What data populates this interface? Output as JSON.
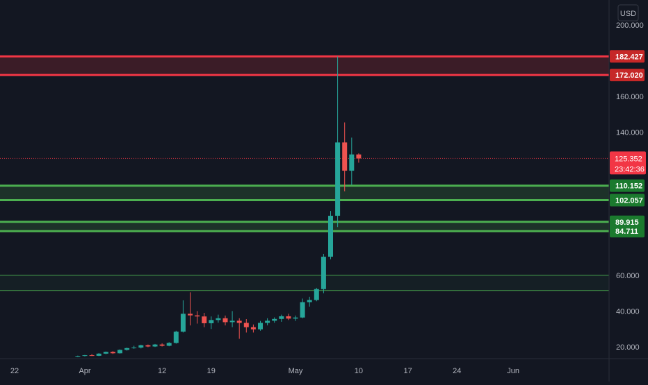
{
  "currency": "USD",
  "price_axis": {
    "ticks": [
      {
        "value": 200,
        "label": "200.000"
      },
      {
        "value": 160,
        "label": "160.000"
      },
      {
        "value": 140,
        "label": "140.000"
      },
      {
        "value": 60,
        "label": "60.000"
      },
      {
        "value": 40,
        "label": "40.000"
      },
      {
        "value": 20,
        "label": "20.000"
      }
    ]
  },
  "time_axis": {
    "ticks": [
      {
        "label": "22",
        "day": -10
      },
      {
        "label": "Apr",
        "day": 0
      },
      {
        "label": "12",
        "day": 11
      },
      {
        "label": "19",
        "day": 18
      },
      {
        "label": "May",
        "day": 30
      },
      {
        "label": "10",
        "day": 39
      },
      {
        "label": "17",
        "day": 46
      },
      {
        "label": "24",
        "day": 53
      },
      {
        "label": "Jun",
        "day": 61
      }
    ]
  },
  "zones": [
    {
      "name": "resistance-zone",
      "top": 182.427,
      "bottom": 172.02,
      "top_label": "182.427",
      "bottom_label": "172.020",
      "color": "#f23645",
      "kind": "resistance"
    },
    {
      "name": "support-zone-1",
      "top": 110.152,
      "bottom": 102.057,
      "top_label": "110.152",
      "bottom_label": "102.057",
      "color": "#4caf50",
      "kind": "support"
    },
    {
      "name": "support-zone-2",
      "top": 89.915,
      "bottom": 84.711,
      "top_label": "89.915",
      "bottom_label": "84.711",
      "color": "#4caf50",
      "kind": "support"
    },
    {
      "name": "support-zone-3",
      "top": 60.0,
      "bottom": 51.5,
      "top_label": "",
      "bottom_label": "",
      "color": "#4caf50",
      "kind": "support-faint"
    }
  ],
  "last_price": {
    "value": 125.352,
    "label": "125.352",
    "countdown": "23:42:36",
    "color": "#f23645"
  },
  "colors": {
    "up": "#26a69a",
    "down": "#ef5350",
    "background": "#131722",
    "text": "#b2b5be",
    "grid": "#1e222d"
  },
  "chart_data": {
    "type": "candlestick",
    "x": [
      "2021-04-01",
      "2021-05-12"
    ],
    "ylim": [
      14,
      208
    ],
    "grid": false,
    "candles": [
      {
        "day": -1,
        "o": 14.6,
        "h": 15.1,
        "l": 14.3,
        "c": 14.9
      },
      {
        "day": 0,
        "o": 14.9,
        "h": 15.5,
        "l": 14.6,
        "c": 15.3
      },
      {
        "day": 1,
        "o": 15.3,
        "h": 16.0,
        "l": 14.9,
        "c": 15.0
      },
      {
        "day": 2,
        "o": 15.0,
        "h": 16.5,
        "l": 14.8,
        "c": 16.2
      },
      {
        "day": 3,
        "o": 16.2,
        "h": 17.4,
        "l": 15.9,
        "c": 17.2
      },
      {
        "day": 4,
        "o": 17.2,
        "h": 17.6,
        "l": 16.0,
        "c": 16.4
      },
      {
        "day": 5,
        "o": 16.4,
        "h": 18.6,
        "l": 16.2,
        "c": 18.3
      },
      {
        "day": 6,
        "o": 18.3,
        "h": 19.6,
        "l": 17.9,
        "c": 19.3
      },
      {
        "day": 7,
        "o": 19.3,
        "h": 20.6,
        "l": 18.9,
        "c": 19.6
      },
      {
        "day": 8,
        "o": 19.6,
        "h": 21.2,
        "l": 19.1,
        "c": 20.9
      },
      {
        "day": 9,
        "o": 20.9,
        "h": 21.3,
        "l": 19.8,
        "c": 20.2
      },
      {
        "day": 10,
        "o": 20.2,
        "h": 21.6,
        "l": 19.9,
        "c": 21.3
      },
      {
        "day": 11,
        "o": 21.3,
        "h": 22.0,
        "l": 20.2,
        "c": 20.6
      },
      {
        "day": 12,
        "o": 20.6,
        "h": 22.6,
        "l": 20.3,
        "c": 22.2
      },
      {
        "day": 13,
        "o": 22.2,
        "h": 29.0,
        "l": 21.8,
        "c": 28.5
      },
      {
        "day": 14,
        "o": 28.5,
        "h": 46.0,
        "l": 28.0,
        "c": 38.5
      },
      {
        "day": 15,
        "o": 38.5,
        "h": 50.5,
        "l": 32.0,
        "c": 37.6
      },
      {
        "day": 16,
        "o": 37.6,
        "h": 40.0,
        "l": 33.0,
        "c": 37.0
      },
      {
        "day": 17,
        "o": 37.0,
        "h": 39.0,
        "l": 31.0,
        "c": 33.2
      },
      {
        "day": 18,
        "o": 33.2,
        "h": 37.0,
        "l": 30.0,
        "c": 35.0
      },
      {
        "day": 19,
        "o": 35.0,
        "h": 38.0,
        "l": 33.5,
        "c": 36.0
      },
      {
        "day": 20,
        "o": 36.0,
        "h": 37.5,
        "l": 32.0,
        "c": 33.8
      },
      {
        "day": 21,
        "o": 33.8,
        "h": 40.0,
        "l": 31.0,
        "c": 34.6
      },
      {
        "day": 22,
        "o": 34.6,
        "h": 36.0,
        "l": 24.5,
        "c": 33.4
      },
      {
        "day": 23,
        "o": 33.4,
        "h": 35.5,
        "l": 28.0,
        "c": 31.0
      },
      {
        "day": 24,
        "o": 31.0,
        "h": 32.5,
        "l": 28.0,
        "c": 29.8
      },
      {
        "day": 25,
        "o": 29.8,
        "h": 34.5,
        "l": 29.0,
        "c": 33.4
      },
      {
        "day": 26,
        "o": 33.4,
        "h": 36.0,
        "l": 32.0,
        "c": 34.6
      },
      {
        "day": 27,
        "o": 34.6,
        "h": 36.5,
        "l": 33.5,
        "c": 35.6
      },
      {
        "day": 28,
        "o": 35.6,
        "h": 38.0,
        "l": 34.0,
        "c": 37.1
      },
      {
        "day": 29,
        "o": 37.1,
        "h": 38.5,
        "l": 35.0,
        "c": 35.8
      },
      {
        "day": 30,
        "o": 35.8,
        "h": 37.5,
        "l": 34.5,
        "c": 36.4
      },
      {
        "day": 31,
        "o": 36.4,
        "h": 47.0,
        "l": 36.0,
        "c": 45.0
      },
      {
        "day": 32,
        "o": 45.0,
        "h": 48.0,
        "l": 42.5,
        "c": 46.2
      },
      {
        "day": 33,
        "o": 46.2,
        "h": 53.0,
        "l": 45.5,
        "c": 52.3
      },
      {
        "day": 34,
        "o": 52.3,
        "h": 72.0,
        "l": 50.0,
        "c": 70.4
      },
      {
        "day": 35,
        "o": 70.4,
        "h": 96.0,
        "l": 69.0,
        "c": 93.3
      },
      {
        "day": 36,
        "o": 93.3,
        "h": 182.4,
        "l": 87.0,
        "c": 134.3
      },
      {
        "day": 37,
        "o": 134.3,
        "h": 145.5,
        "l": 107.0,
        "c": 118.5
      },
      {
        "day": 38,
        "o": 118.5,
        "h": 137.0,
        "l": 110.5,
        "c": 127.6
      },
      {
        "day": 39,
        "o": 127.6,
        "h": 128.2,
        "l": 123.0,
        "c": 125.352
      }
    ]
  }
}
